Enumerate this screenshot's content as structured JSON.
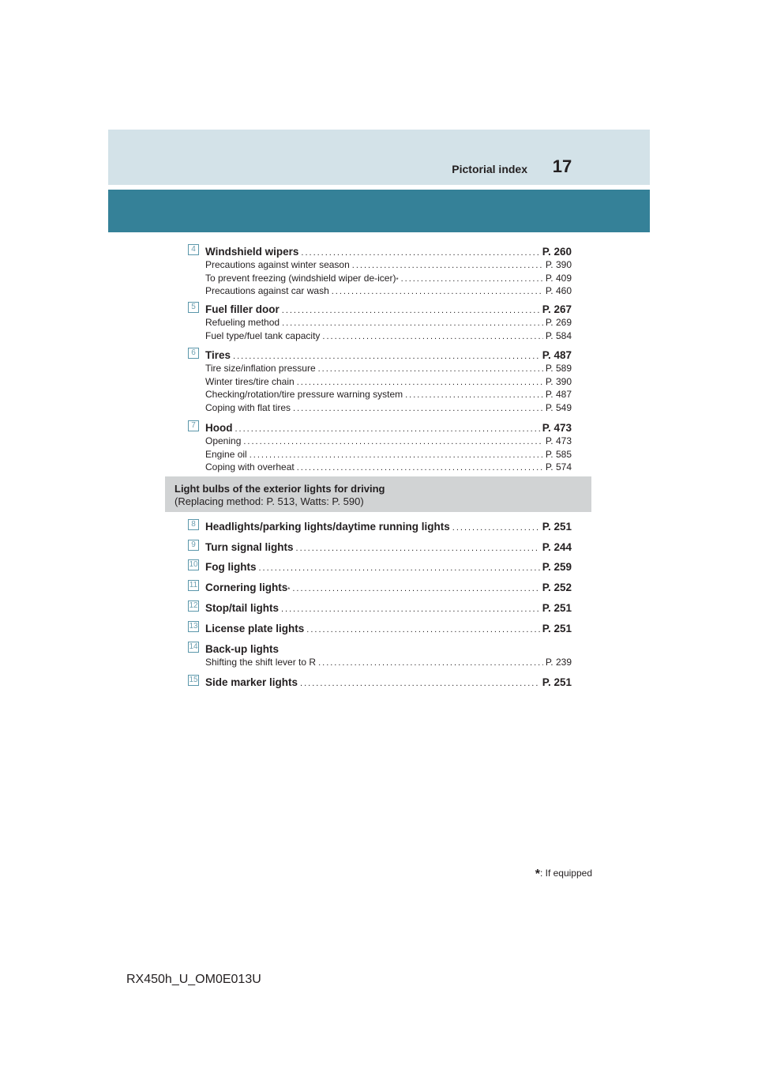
{
  "header": {
    "title": "Pictorial index",
    "page_number": "17"
  },
  "entries_top": [
    {
      "num": "4",
      "label": "Windshield wipers",
      "ref": "P. 260",
      "subs": [
        {
          "label": "Precautions against winter season",
          "ref": "P. 390"
        },
        {
          "label": "To prevent freezing (windshield wiper de-icer)",
          "star": "*",
          "ref": "P. 409"
        },
        {
          "label": "Precautions against car wash",
          "ref": "P. 460"
        }
      ]
    },
    {
      "num": "5",
      "label": "Fuel filler door",
      "ref": "P. 267",
      "subs": [
        {
          "label": "Refueling method",
          "ref": "P. 269"
        },
        {
          "label": "Fuel type/fuel tank capacity",
          "ref": "P. 584"
        }
      ]
    },
    {
      "num": "6",
      "label": "Tires",
      "ref": "P. 487",
      "subs": [
        {
          "label": "Tire size/inflation pressure",
          "ref": "P. 589"
        },
        {
          "label": "Winter tires/tire chain",
          "ref": "P. 390"
        },
        {
          "label": "Checking/rotation/tire pressure warning system",
          "ref": "P. 487"
        },
        {
          "label": "Coping with flat tires",
          "ref": "P. 549"
        }
      ]
    },
    {
      "num": "7",
      "label": "Hood",
      "ref": "P. 473",
      "subs": [
        {
          "label": "Opening",
          "ref": "P. 473"
        },
        {
          "label": "Engine oil",
          "ref": "P. 585"
        },
        {
          "label": "Coping with overheat",
          "ref": "P. 574"
        }
      ]
    }
  ],
  "lights_box": {
    "line1": "Light bulbs of the exterior lights for driving",
    "line2": "(Replacing method: P. 513, Watts: P. 590)"
  },
  "entries_lights": [
    {
      "num": "8",
      "label": "Headlights/parking lights/daytime running lights",
      "ref": "P. 251"
    },
    {
      "num": "9",
      "label": "Turn signal lights",
      "ref": "P. 244"
    },
    {
      "num": "10",
      "label": "Fog lights",
      "ref": "P. 259"
    },
    {
      "num": "11",
      "label": "Cornering lights",
      "star": "*",
      "ref": "P. 252"
    },
    {
      "num": "12",
      "label": "Stop/tail lights",
      "ref": "P. 251"
    },
    {
      "num": "13",
      "label": "License plate lights",
      "ref": "P. 251"
    },
    {
      "num": "14",
      "label": "Back-up lights",
      "ref": "",
      "subs": [
        {
          "label": "Shifting the shift lever to R",
          "ref": "P. 239"
        }
      ]
    },
    {
      "num": "15",
      "label": "Side marker lights",
      "ref": "P. 251"
    }
  ],
  "footnote": {
    "star": "*",
    "text": ": If equipped"
  },
  "footer_code": "RX450h_U_OM0E013U"
}
